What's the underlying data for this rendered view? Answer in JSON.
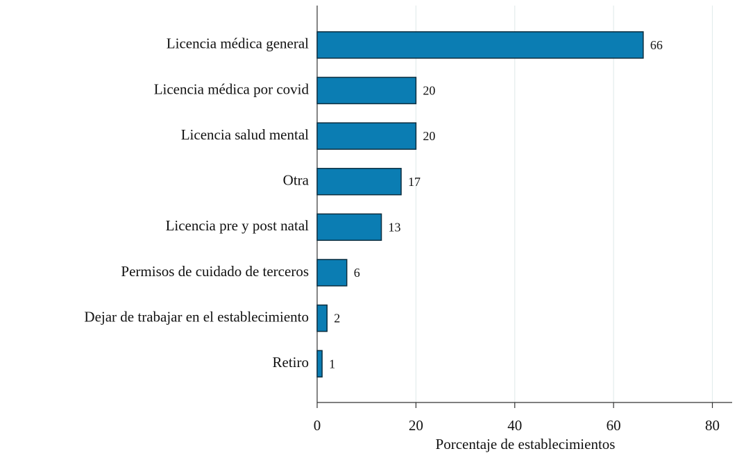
{
  "chart_data": {
    "type": "barh",
    "xlabel": "Porcentaje de establecimientos",
    "categories": [
      "Licencia médica general",
      "Licencia médica por covid",
      "Licencia salud mental",
      "Otra",
      "Licencia pre y post natal",
      "Permisos de cuidado de terceros",
      "Dejar de trabajar en el establecimiento",
      "Retiro"
    ],
    "values": [
      66,
      20,
      20,
      17,
      13,
      6,
      2,
      1
    ],
    "color": "#0b7db3",
    "xlim": [
      0,
      84
    ],
    "xticks": [
      0,
      20,
      40,
      60,
      80
    ],
    "grid": true
  }
}
